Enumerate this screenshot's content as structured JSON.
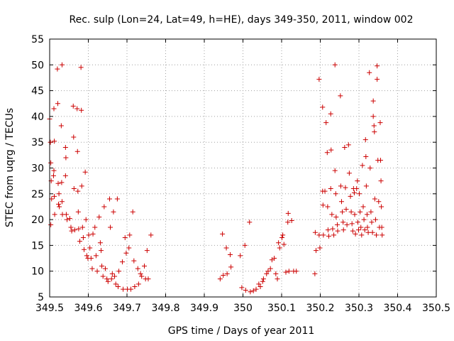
{
  "chart_data": {
    "type": "scatter",
    "title": "Rec. sulp (Lon=24, Lat=49, h=HE), days 349-350, 2011, window 002",
    "xlabel": "GPS time / Days of year 2011",
    "ylabel": "STEC from uqrg / TECUs",
    "xlim": [
      349.5,
      350.5
    ],
    "ylim": [
      5,
      55
    ],
    "xticks": [
      349.5,
      349.6,
      349.7,
      349.8,
      349.9,
      350,
      350.1,
      350.2,
      350.3,
      350.4,
      350.5
    ],
    "xtick_labels": [
      "349.5",
      "349.6",
      "349.7",
      "349.8",
      "349.9",
      "350",
      "350.1",
      "350.2",
      "350.3",
      "350.4",
      "350.5"
    ],
    "yticks": [
      5,
      10,
      15,
      20,
      25,
      30,
      35,
      40,
      45,
      50,
      55
    ],
    "ytick_labels": [
      "5",
      "10",
      "15",
      "20",
      "25",
      "30",
      "35",
      "40",
      "45",
      "50",
      "55"
    ],
    "grid": true,
    "marker": "+",
    "color": "#cc0000",
    "series": [
      {
        "points": [
          [
            349.502,
            35.0
          ],
          [
            349.503,
            31.0
          ],
          [
            349.504,
            27.5
          ],
          [
            349.505,
            24.0
          ],
          [
            349.503,
            19.0
          ],
          [
            349.5,
            39.5
          ],
          [
            349.511,
            41.5
          ],
          [
            349.512,
            35.2
          ],
          [
            349.511,
            29.5
          ],
          [
            349.512,
            24.5
          ],
          [
            349.513,
            21.0
          ],
          [
            349.51,
            28.5
          ],
          [
            349.52,
            49.2
          ],
          [
            349.521,
            42.5
          ],
          [
            349.522,
            27.0
          ],
          [
            349.523,
            23.0
          ],
          [
            349.524,
            25.0
          ],
          [
            349.525,
            22.5
          ],
          [
            349.532,
            50.0
          ],
          [
            349.53,
            38.2
          ],
          [
            349.531,
            27.2
          ],
          [
            349.532,
            23.5
          ],
          [
            349.533,
            21.0
          ],
          [
            349.541,
            34.0
          ],
          [
            349.542,
            32.0
          ],
          [
            349.541,
            28.5
          ],
          [
            349.543,
            21.0
          ],
          [
            349.545,
            20.0
          ],
          [
            349.552,
            20.2
          ],
          [
            349.555,
            18.5
          ],
          [
            349.557,
            17.8
          ],
          [
            349.561,
            42.0
          ],
          [
            349.562,
            36.0
          ],
          [
            349.563,
            26.0
          ],
          [
            349.565,
            18.0
          ],
          [
            349.571,
            41.5
          ],
          [
            349.572,
            33.2
          ],
          [
            349.573,
            25.5
          ],
          [
            349.574,
            21.5
          ],
          [
            349.575,
            18.2
          ],
          [
            349.578,
            15.8
          ],
          [
            349.581,
            49.5
          ],
          [
            349.582,
            41.2
          ],
          [
            349.583,
            26.5
          ],
          [
            349.585,
            18.5
          ],
          [
            349.587,
            16.5
          ],
          [
            349.589,
            14.2
          ],
          [
            349.592,
            29.2
          ],
          [
            349.594,
            20.0
          ],
          [
            349.596,
            13.0
          ],
          [
            349.599,
            12.5
          ],
          [
            349.601,
            17.0
          ],
          [
            349.604,
            14.5
          ],
          [
            349.607,
            12.5
          ],
          [
            349.61,
            10.5
          ],
          [
            349.612,
            17.2
          ],
          [
            349.617,
            18.5
          ],
          [
            349.62,
            13.0
          ],
          [
            349.623,
            10.0
          ],
          [
            349.628,
            20.5
          ],
          [
            349.631,
            15.5
          ],
          [
            349.633,
            14.0
          ],
          [
            349.635,
            11.0
          ],
          [
            349.638,
            9.0
          ],
          [
            349.641,
            22.5
          ],
          [
            349.644,
            10.5
          ],
          [
            349.648,
            8.5
          ],
          [
            349.651,
            8.0
          ],
          [
            349.655,
            24.0
          ],
          [
            349.657,
            18.5
          ],
          [
            349.66,
            8.5
          ],
          [
            349.662,
            9.5
          ],
          [
            349.665,
            21.5
          ],
          [
            349.668,
            9.0
          ],
          [
            349.671,
            7.5
          ],
          [
            349.675,
            24.0
          ],
          [
            349.677,
            7.0
          ],
          [
            349.679,
            10.0
          ],
          [
            349.688,
            11.8
          ],
          [
            349.69,
            6.5
          ],
          [
            349.695,
            16.5
          ],
          [
            349.698,
            13.5
          ],
          [
            349.701,
            6.5
          ],
          [
            349.705,
            14.5
          ],
          [
            349.707,
            17.0
          ],
          [
            349.71,
            6.5
          ],
          [
            349.715,
            21.5
          ],
          [
            349.718,
            12.0
          ],
          [
            349.72,
            7.0
          ],
          [
            349.728,
            10.5
          ],
          [
            349.73,
            7.5
          ],
          [
            349.735,
            9.5
          ],
          [
            349.738,
            9.0
          ],
          [
            349.745,
            11.0
          ],
          [
            349.748,
            8.5
          ],
          [
            349.752,
            14.0
          ],
          [
            349.755,
            8.5
          ],
          [
            349.762,
            17.0
          ],
          [
            349.941,
            8.5
          ],
          [
            349.947,
            17.2
          ],
          [
            349.949,
            9.2
          ],
          [
            349.957,
            14.5
          ],
          [
            349.959,
            9.5
          ],
          [
            349.967,
            13.2
          ],
          [
            349.969,
            10.8
          ],
          [
            349.993,
            13.0
          ],
          [
            349.997,
            6.8
          ],
          [
            350.005,
            15.0
          ],
          [
            350.007,
            6.3
          ],
          [
            350.017,
            19.5
          ],
          [
            350.019,
            6.0
          ],
          [
            350.027,
            6.2
          ],
          [
            350.034,
            6.5
          ],
          [
            350.041,
            7.5
          ],
          [
            350.045,
            7.0
          ],
          [
            350.051,
            8.0
          ],
          [
            350.053,
            8.5
          ],
          [
            350.061,
            9.5
          ],
          [
            350.065,
            10.0
          ],
          [
            350.071,
            10.5
          ],
          [
            350.075,
            12.2
          ],
          [
            350.081,
            12.5
          ],
          [
            350.085,
            9.5
          ],
          [
            350.089,
            8.5
          ],
          [
            350.092,
            15.5
          ],
          [
            350.095,
            14.5
          ],
          [
            350.101,
            16.5
          ],
          [
            350.103,
            17.0
          ],
          [
            350.106,
            15.2
          ],
          [
            350.111,
            9.8
          ],
          [
            350.116,
            19.5
          ],
          [
            350.117,
            21.2
          ],
          [
            350.119,
            10.0
          ],
          [
            350.126,
            19.8
          ],
          [
            350.131,
            10.0
          ],
          [
            350.138,
            10.0
          ],
          [
            350.186,
            9.5
          ],
          [
            350.187,
            17.5
          ],
          [
            350.189,
            14.0
          ],
          [
            350.197,
            47.2
          ],
          [
            350.197,
            17.0
          ],
          [
            350.199,
            14.5
          ],
          [
            350.206,
            41.8
          ],
          [
            350.206,
            25.5
          ],
          [
            350.207,
            22.8
          ],
          [
            350.208,
            17.0
          ],
          [
            350.212,
            25.5
          ],
          [
            350.215,
            38.8
          ],
          [
            350.218,
            33.0
          ],
          [
            350.219,
            22.5
          ],
          [
            350.22,
            18.0
          ],
          [
            350.222,
            16.8
          ],
          [
            350.227,
            40.5
          ],
          [
            350.227,
            26.0
          ],
          [
            350.228,
            33.5
          ],
          [
            350.23,
            21.0
          ],
          [
            350.232,
            18.2
          ],
          [
            350.235,
            17.0
          ],
          [
            350.238,
            50.0
          ],
          [
            350.238,
            29.5
          ],
          [
            350.24,
            25.0
          ],
          [
            350.241,
            20.5
          ],
          [
            350.244,
            19.0
          ],
          [
            350.245,
            17.8
          ],
          [
            350.252,
            44.0
          ],
          [
            350.253,
            26.5
          ],
          [
            350.255,
            23.5
          ],
          [
            350.257,
            21.5
          ],
          [
            350.259,
            19.5
          ],
          [
            350.26,
            18.0
          ],
          [
            350.263,
            34.0
          ],
          [
            350.265,
            26.2
          ],
          [
            350.267,
            22.0
          ],
          [
            350.269,
            19.0
          ],
          [
            350.273,
            34.5
          ],
          [
            350.275,
            29.0
          ],
          [
            350.278,
            24.5
          ],
          [
            350.28,
            21.5
          ],
          [
            350.282,
            19.2
          ],
          [
            350.284,
            17.8
          ],
          [
            350.286,
            26.0
          ],
          [
            350.288,
            25.2
          ],
          [
            350.289,
            21.0
          ],
          [
            350.291,
            17.2
          ],
          [
            350.294,
            26.0
          ],
          [
            350.296,
            27.5
          ],
          [
            350.297,
            19.5
          ],
          [
            350.299,
            18.0
          ],
          [
            350.301,
            25.0
          ],
          [
            350.303,
            21.5
          ],
          [
            350.305,
            18.5
          ],
          [
            350.307,
            17.0
          ],
          [
            350.309,
            30.5
          ],
          [
            350.311,
            22.5
          ],
          [
            350.313,
            20.0
          ],
          [
            350.315,
            18.0
          ],
          [
            350.317,
            35.5
          ],
          [
            350.318,
            32.2
          ],
          [
            350.319,
            26.5
          ],
          [
            350.321,
            21.0
          ],
          [
            350.322,
            18.5
          ],
          [
            350.324,
            17.5
          ],
          [
            350.327,
            48.5
          ],
          [
            350.329,
            30.0
          ],
          [
            350.331,
            21.5
          ],
          [
            350.333,
            19.5
          ],
          [
            350.335,
            17.5
          ],
          [
            350.337,
            43.0
          ],
          [
            350.337,
            40.0
          ],
          [
            350.339,
            38.2
          ],
          [
            350.34,
            37.0
          ],
          [
            350.341,
            24.0
          ],
          [
            350.343,
            20.0
          ],
          [
            350.345,
            17.0
          ],
          [
            350.347,
            49.8
          ],
          [
            350.347,
            47.2
          ],
          [
            350.349,
            31.5
          ],
          [
            350.351,
            23.5
          ],
          [
            350.353,
            18.5
          ],
          [
            350.355,
            38.8
          ],
          [
            350.356,
            31.5
          ],
          [
            350.357,
            27.5
          ],
          [
            350.358,
            22.5
          ],
          [
            350.359,
            18.5
          ],
          [
            350.36,
            17.0
          ]
        ]
      }
    ]
  }
}
